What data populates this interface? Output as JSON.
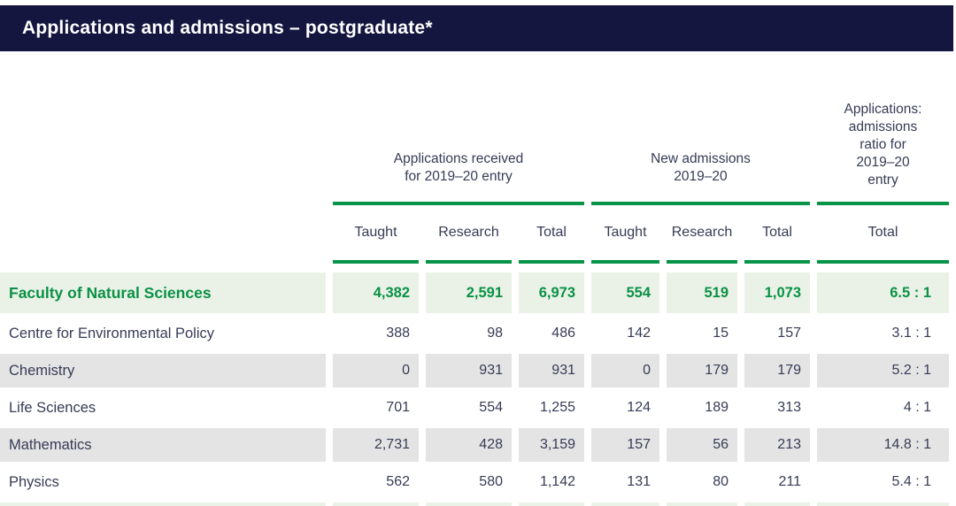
{
  "title": "Applications and admissions – postgraduate*",
  "colors": {
    "header_bar": "#14163f",
    "accent_green": "#089448",
    "highlight_row_bg": "#eaf2e7",
    "stripe_row_bg": "#e4e4e4",
    "highlight_text": "#0a9145",
    "body_text": "#363c55"
  },
  "table": {
    "groups": [
      {
        "label": "Applications received\nfor  2019–20 entry"
      },
      {
        "label": "New admissions\n2019–20"
      },
      {
        "label": "Applications:\nadmissions\nratio for\n2019–20\nentry"
      }
    ],
    "columns": [
      "Taught",
      "Research",
      "Total",
      "Taught",
      "Research",
      "Total",
      "Total"
    ],
    "rows": [
      {
        "name": "Faculty of Natural Sciences",
        "values": [
          "4,382",
          "2,591",
          "6,973",
          "554",
          "519",
          "1,073",
          "6.5 : 1"
        ]
      },
      {
        "name": "Centre for Environmental Policy",
        "values": [
          "388",
          "98",
          "486",
          "142",
          "15",
          "157",
          "3.1 : 1"
        ]
      },
      {
        "name": "Chemistry",
        "values": [
          "0",
          "931",
          "931",
          "0",
          "179",
          "179",
          "5.2 : 1"
        ]
      },
      {
        "name": "Life Sciences",
        "values": [
          "701",
          "554",
          "1,255",
          "124",
          "189",
          "313",
          "4 : 1"
        ]
      },
      {
        "name": "Mathematics",
        "values": [
          "2,731",
          "428",
          "3,159",
          "157",
          "56",
          "213",
          "14.8 : 1"
        ]
      },
      {
        "name": "Physics",
        "values": [
          "562",
          "580",
          "1,142",
          "131",
          "80",
          "211",
          "5.4 : 1"
        ]
      }
    ]
  }
}
